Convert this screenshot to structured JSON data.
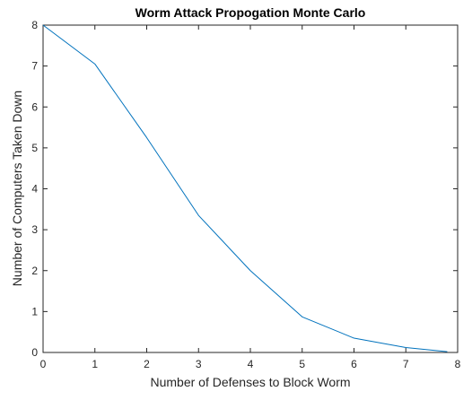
{
  "chart_data": {
    "type": "line",
    "title": "Worm Attack Propogation Monte Carlo",
    "xlabel": "Number of Defenses to Block Worm",
    "ylabel": "Number of Computers Taken Down",
    "xlim": [
      0,
      8
    ],
    "ylim": [
      0,
      8
    ],
    "xticks": [
      "0",
      "1",
      "2",
      "3",
      "4",
      "5",
      "6",
      "7",
      "8"
    ],
    "yticks": [
      "0",
      "1",
      "2",
      "3",
      "4",
      "5",
      "6",
      "7",
      "8"
    ],
    "grid": false,
    "series": [
      {
        "x": [
          0,
          1,
          2,
          3,
          4,
          5,
          6,
          7,
          7.8
        ],
        "y": [
          8,
          7.05,
          5.25,
          3.35,
          2.0,
          0.87,
          0.35,
          0.12,
          0.02
        ],
        "color": "#0072bd"
      }
    ]
  }
}
